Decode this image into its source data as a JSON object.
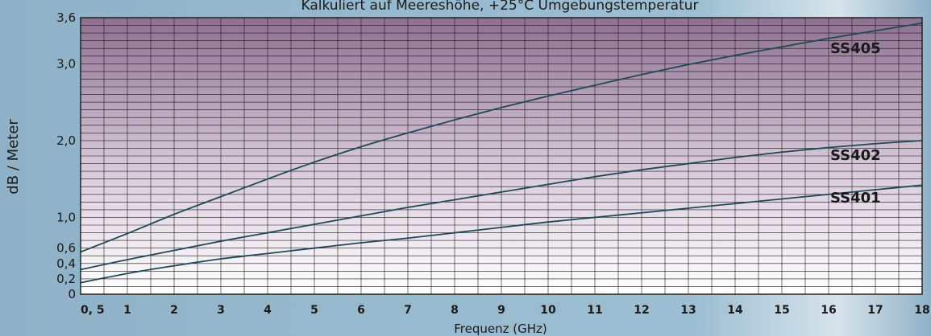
{
  "chart_data": {
    "type": "line",
    "title": "Kalkuliert auf Meereshöhe, +25°C Umgebungstemperatur",
    "xlabel": "Frequenz (GHz)",
    "ylabel": "dB / Meter",
    "xlim": [
      0,
      18
    ],
    "ylim": [
      0,
      3.6
    ],
    "x_ticks": [
      {
        "value": 0,
        "label": "0, 5"
      },
      {
        "value": 1,
        "label": "1"
      },
      {
        "value": 2,
        "label": "2"
      },
      {
        "value": 3,
        "label": "3"
      },
      {
        "value": 4,
        "label": "4"
      },
      {
        "value": 5,
        "label": "5"
      },
      {
        "value": 6,
        "label": "6"
      },
      {
        "value": 7,
        "label": "7"
      },
      {
        "value": 8,
        "label": "8"
      },
      {
        "value": 9,
        "label": "9"
      },
      {
        "value": 10,
        "label": "10"
      },
      {
        "value": 11,
        "label": "11"
      },
      {
        "value": 12,
        "label": "12"
      },
      {
        "value": 13,
        "label": "13"
      },
      {
        "value": 14,
        "label": "14"
      },
      {
        "value": 15,
        "label": "15"
      },
      {
        "value": 16,
        "label": "16"
      },
      {
        "value": 17,
        "label": "17"
      },
      {
        "value": 18,
        "label": "18"
      }
    ],
    "y_ticks": [
      {
        "value": 0,
        "label": "0"
      },
      {
        "value": 0.2,
        "label": "0,2"
      },
      {
        "value": 0.4,
        "label": "0,4"
      },
      {
        "value": 0.6,
        "label": "0,6"
      },
      {
        "value": 1.0,
        "label": "1,0"
      },
      {
        "value": 2.0,
        "label": "2,0"
      },
      {
        "value": 3.0,
        "label": "3,0"
      },
      {
        "value": 3.6,
        "label": "3,6"
      }
    ],
    "grid": true,
    "series": [
      {
        "name": "SS405",
        "x": [
          0,
          1,
          2,
          3,
          4,
          5,
          6,
          7,
          8,
          9,
          10,
          11,
          12,
          13,
          14,
          15,
          16,
          17,
          18
        ],
        "y": [
          0.55,
          0.79,
          1.04,
          1.27,
          1.5,
          1.72,
          1.92,
          2.1,
          2.27,
          2.43,
          2.58,
          2.72,
          2.86,
          2.99,
          3.11,
          3.22,
          3.33,
          3.43,
          3.53
        ]
      },
      {
        "name": "SS402",
        "x": [
          0,
          1,
          2,
          3,
          4,
          5,
          6,
          7,
          8,
          9,
          10,
          11,
          12,
          13,
          14,
          15,
          16,
          17,
          18
        ],
        "y": [
          0.32,
          0.45,
          0.57,
          0.69,
          0.8,
          0.91,
          1.02,
          1.13,
          1.23,
          1.33,
          1.43,
          1.53,
          1.62,
          1.7,
          1.78,
          1.85,
          1.91,
          1.96,
          2.0
        ]
      },
      {
        "name": "SS401",
        "x": [
          0,
          1,
          2,
          3,
          4,
          5,
          6,
          7,
          8,
          9,
          10,
          11,
          12,
          13,
          14,
          15,
          16,
          17,
          18
        ],
        "y": [
          0.15,
          0.27,
          0.37,
          0.46,
          0.53,
          0.6,
          0.67,
          0.73,
          0.8,
          0.87,
          0.94,
          1.0,
          1.06,
          1.12,
          1.18,
          1.24,
          1.3,
          1.36,
          1.42
        ]
      }
    ],
    "colors": {
      "line": "#1f4a55",
      "grid": "#1a1a1a",
      "plot_top": "#8e7090",
      "plot_bottom": "#ffffff",
      "background": "#8fb2c8"
    }
  }
}
